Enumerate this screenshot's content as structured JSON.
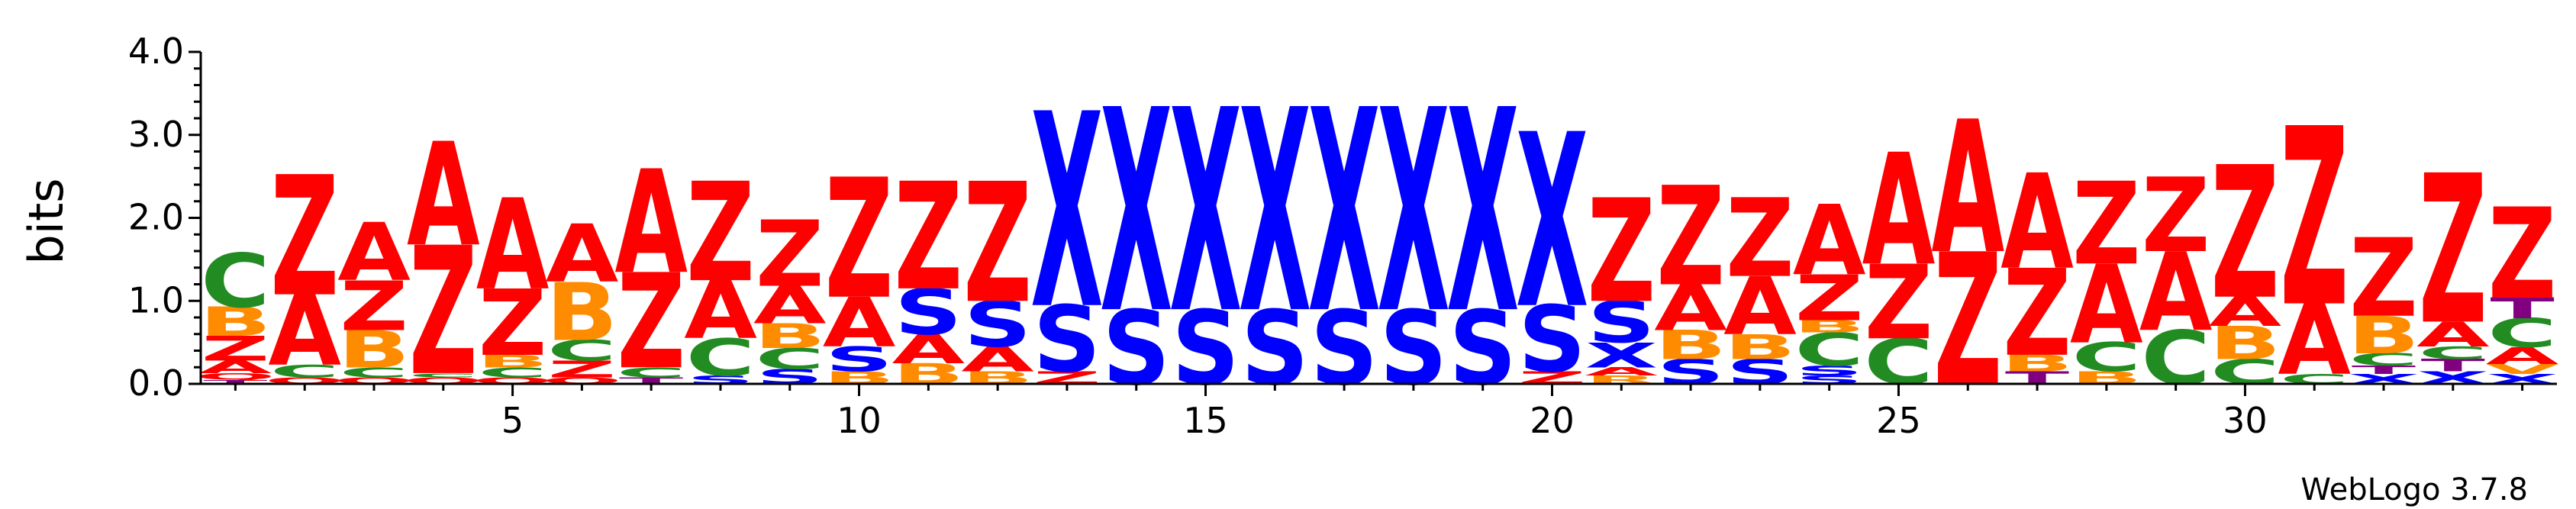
{
  "chart_data": {
    "type": "sequence-logo",
    "ylabel": "bits",
    "ylim": [
      0,
      4
    ],
    "yticks": [
      "0.0",
      "1.0",
      "2.0",
      "3.0",
      "4.0"
    ],
    "xticks": [
      5,
      10,
      15,
      20,
      25,
      30
    ],
    "credit": "WebLogo 3.7.8",
    "colors": {
      "A": "#ff0000",
      "Z": "#ff0000",
      "B": "#ff8c00",
      "R": "#ff8c00",
      "V": "#ff8c00",
      "C": "#228b22",
      "G": "#228b22",
      "S": "#0000ff",
      "X": "#0000ff",
      "T": "#800080",
      "O": "#ff0000",
      "Q": "#ff0000"
    },
    "positions": [
      {
        "pos": 1,
        "letters": [
          [
            "T",
            0.05
          ],
          [
            "Q",
            0.08
          ],
          [
            "A",
            0.15
          ],
          [
            "Z",
            0.3
          ],
          [
            "B",
            0.35
          ],
          [
            "C",
            0.65
          ]
        ]
      },
      {
        "pos": 2,
        "letters": [
          [
            "Q",
            0.08
          ],
          [
            "C",
            0.15
          ],
          [
            "A",
            0.85
          ],
          [
            "Z",
            1.45
          ]
        ]
      },
      {
        "pos": 3,
        "letters": [
          [
            "O",
            0.08
          ],
          [
            "C",
            0.12
          ],
          [
            "B",
            0.45
          ],
          [
            "Z",
            0.6
          ],
          [
            "A",
            0.7
          ]
        ]
      },
      {
        "pos": 4,
        "letters": [
          [
            "Q",
            0.08
          ],
          [
            "C",
            0.05
          ],
          [
            "Z",
            1.55
          ],
          [
            "A",
            1.25
          ]
        ]
      },
      {
        "pos": 5,
        "letters": [
          [
            "O",
            0.08
          ],
          [
            "C",
            0.12
          ],
          [
            "B",
            0.15
          ],
          [
            "Z",
            0.8
          ],
          [
            "A",
            1.1
          ]
        ]
      },
      {
        "pos": 6,
        "letters": [
          [
            "O",
            0.08
          ],
          [
            "Z",
            0.2
          ],
          [
            "C",
            0.25
          ],
          [
            "B",
            0.7
          ],
          [
            "A",
            0.7
          ]
        ]
      },
      {
        "pos": 7,
        "letters": [
          [
            "T",
            0.08
          ],
          [
            "C",
            0.12
          ],
          [
            "Z",
            1.15
          ],
          [
            "A",
            1.25
          ]
        ]
      },
      {
        "pos": 8,
        "letters": [
          [
            "S",
            0.1
          ],
          [
            "C",
            0.45
          ],
          [
            "A",
            0.7
          ],
          [
            "Z",
            1.2
          ]
        ]
      },
      {
        "pos": 9,
        "letters": [
          [
            "S",
            0.18
          ],
          [
            "C",
            0.25
          ],
          [
            "B",
            0.3
          ],
          [
            "A",
            0.45
          ],
          [
            "Z",
            0.8
          ]
        ]
      },
      {
        "pos": 10,
        "letters": [
          [
            "B",
            0.15
          ],
          [
            "S",
            0.3
          ],
          [
            "A",
            0.6
          ],
          [
            "Z",
            1.45
          ]
        ]
      },
      {
        "pos": 11,
        "letters": [
          [
            "B",
            0.25
          ],
          [
            "A",
            0.35
          ],
          [
            "S",
            0.55
          ],
          [
            "Z",
            1.3
          ]
        ]
      },
      {
        "pos": 12,
        "letters": [
          [
            "B",
            0.15
          ],
          [
            "A",
            0.3
          ],
          [
            "S",
            0.55
          ],
          [
            "Z",
            1.45
          ]
        ]
      },
      {
        "pos": 13,
        "letters": [
          [
            "Z",
            0.15
          ],
          [
            "S",
            0.8
          ],
          [
            "X",
            2.35
          ]
        ]
      },
      {
        "pos": 14,
        "letters": [
          [
            "S",
            0.9
          ],
          [
            "X",
            2.45
          ]
        ]
      },
      {
        "pos": 15,
        "letters": [
          [
            "S",
            0.9
          ],
          [
            "X",
            2.45
          ]
        ]
      },
      {
        "pos": 16,
        "letters": [
          [
            "S",
            0.9
          ],
          [
            "X",
            2.45
          ]
        ]
      },
      {
        "pos": 17,
        "letters": [
          [
            "S",
            0.9
          ],
          [
            "X",
            2.45
          ]
        ]
      },
      {
        "pos": 18,
        "letters": [
          [
            "S",
            0.9
          ],
          [
            "X",
            2.45
          ]
        ]
      },
      {
        "pos": 19,
        "letters": [
          [
            "S",
            0.9
          ],
          [
            "X",
            2.45
          ]
        ]
      },
      {
        "pos": 20,
        "letters": [
          [
            "Z",
            0.15
          ],
          [
            "S",
            0.8
          ],
          [
            "X",
            2.1
          ]
        ]
      },
      {
        "pos": 21,
        "letters": [
          [
            "R",
            0.1
          ],
          [
            "A",
            0.1
          ],
          [
            "X",
            0.3
          ],
          [
            "S",
            0.5
          ],
          [
            "Z",
            1.25
          ]
        ]
      },
      {
        "pos": 22,
        "letters": [
          [
            "S",
            0.3
          ],
          [
            "B",
            0.35
          ],
          [
            "A",
            0.55
          ],
          [
            "Z",
            1.2
          ]
        ]
      },
      {
        "pos": 23,
        "letters": [
          [
            "S",
            0.3
          ],
          [
            "B",
            0.3
          ],
          [
            "A",
            0.7
          ],
          [
            "Z",
            0.95
          ]
        ]
      },
      {
        "pos": 24,
        "letters": [
          [
            "S",
            0.1
          ],
          [
            "S",
            0.12
          ],
          [
            "C",
            0.4
          ],
          [
            "B",
            0.15
          ],
          [
            "Z",
            0.55
          ],
          [
            "A",
            0.85
          ]
        ]
      },
      {
        "pos": 25,
        "letters": [
          [
            "C",
            0.55
          ],
          [
            "Z",
            0.9
          ],
          [
            "A",
            1.35
          ]
        ]
      },
      {
        "pos": 26,
        "letters": [
          [
            "Z",
            1.6
          ],
          [
            "A",
            1.6
          ]
        ]
      },
      {
        "pos": 27,
        "letters": [
          [
            "T",
            0.15
          ],
          [
            "B",
            0.2
          ],
          [
            "Z",
            1.05
          ],
          [
            "A",
            1.15
          ]
        ]
      },
      {
        "pos": 28,
        "letters": [
          [
            "B",
            0.15
          ],
          [
            "C",
            0.35
          ],
          [
            "A",
            0.95
          ],
          [
            "Z",
            1.0
          ]
        ]
      },
      {
        "pos": 29,
        "letters": [
          [
            "C",
            0.65
          ],
          [
            "A",
            0.95
          ],
          [
            "Z",
            0.9
          ]
        ]
      },
      {
        "pos": 30,
        "letters": [
          [
            "C",
            0.3
          ],
          [
            "B",
            0.4
          ],
          [
            "A",
            0.35
          ],
          [
            "Z",
            1.6
          ]
        ]
      },
      {
        "pos": 31,
        "letters": [
          [
            "C",
            0.12
          ],
          [
            "A",
            0.85
          ],
          [
            "Z",
            2.15
          ]
        ]
      },
      {
        "pos": 32,
        "letters": [
          [
            "X",
            0.12
          ],
          [
            "T",
            0.1
          ],
          [
            "C",
            0.15
          ],
          [
            "B",
            0.45
          ],
          [
            "Z",
            0.95
          ]
        ]
      },
      {
        "pos": 33,
        "letters": [
          [
            "X",
            0.15
          ],
          [
            "T",
            0.15
          ],
          [
            "C",
            0.15
          ],
          [
            "A",
            0.3
          ],
          [
            "Z",
            1.8
          ]
        ]
      },
      {
        "pos": 34,
        "letters": [
          [
            "X",
            0.12
          ],
          [
            "V",
            0.12
          ],
          [
            "A",
            0.2
          ],
          [
            "C",
            0.35
          ],
          [
            "T",
            0.25
          ],
          [
            "Z",
            1.1
          ]
        ]
      }
    ]
  }
}
